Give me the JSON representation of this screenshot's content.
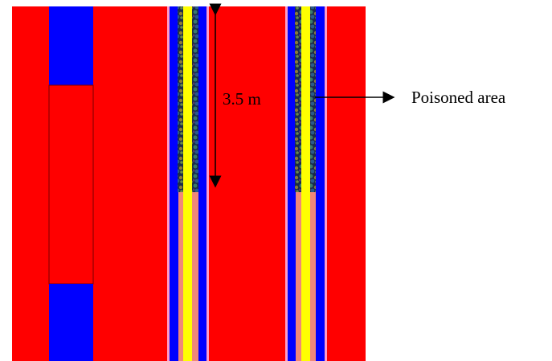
{
  "annotations": {
    "height_label": "3.5 m",
    "poisoned_label": "Poisoned area"
  },
  "colors": {
    "background_region": "#ff0000",
    "blue_region": "#0000ff",
    "yellow_rod": "#ffff00",
    "pink_rod": "#f08878",
    "cladding": "#ff9cc8",
    "arrow": "#000000"
  }
}
